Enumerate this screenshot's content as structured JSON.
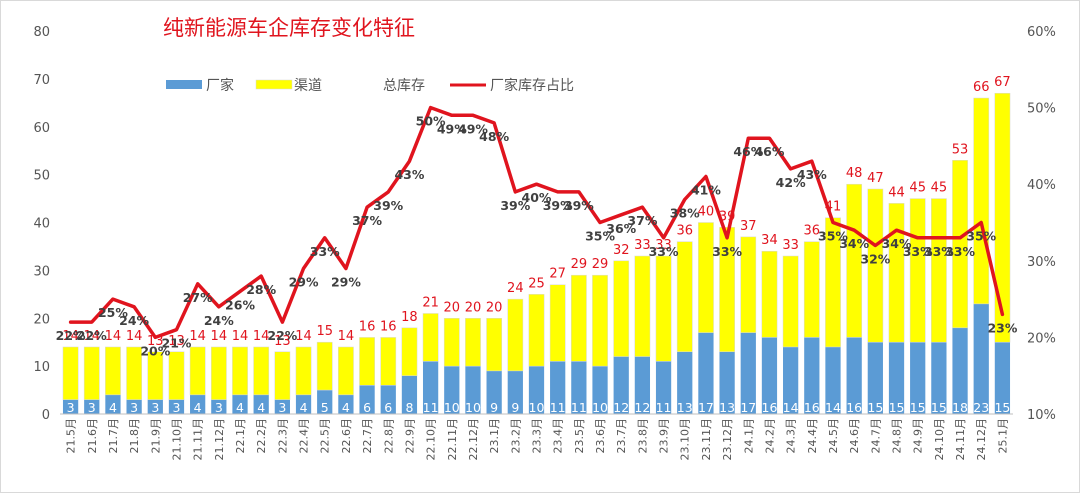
{
  "chart_data": {
    "type": "bar",
    "title": "纯新能源车企库存变化特征",
    "categories": [
      "21.5月",
      "21.6月",
      "21.7月",
      "21.8月",
      "21.9月",
      "21.10月",
      "21.11月",
      "21.12月",
      "22.1月",
      "22.2月",
      "22.3月",
      "22.4月",
      "22.5月",
      "22.6月",
      "22.7月",
      "22.8月",
      "22.9月",
      "22.10月",
      "22.11月",
      "22.12月",
      "23.1月",
      "23.2月",
      "23.3月",
      "23.4月",
      "23.5月",
      "23.6月",
      "23.7月",
      "23.8月",
      "23.9月",
      "23.10月",
      "23.11月",
      "23.12月",
      "24.1月",
      "24.2月",
      "24.3月",
      "24.4月",
      "24.5月",
      "24.6月",
      "24.7月",
      "24.8月",
      "24.9月",
      "24.10月",
      "24.11月",
      "24.12月",
      "25.1月"
    ],
    "series": [
      {
        "name": "厂家",
        "type": "bar",
        "stack": "inventory",
        "color": "#5b9bd5",
        "axis": "left",
        "values": [
          3,
          3,
          4,
          3,
          3,
          3,
          4,
          3,
          4,
          4,
          3,
          4,
          5,
          4,
          6,
          6,
          8,
          11,
          10,
          10,
          9,
          9,
          10,
          11,
          11,
          10,
          12,
          12,
          11,
          13,
          17,
          13,
          17,
          16,
          14,
          16,
          14,
          16,
          15,
          15,
          15,
          15,
          18,
          23,
          15
        ]
      },
      {
        "name": "渠道",
        "type": "bar",
        "stack": "inventory",
        "color": "#ffff00",
        "axis": "left",
        "values": [
          11,
          11,
          10,
          11,
          10,
          10,
          10,
          11,
          10,
          10,
          10,
          10,
          10,
          10,
          10,
          10,
          10,
          10,
          10,
          10,
          11,
          15,
          15,
          16,
          18,
          19,
          20,
          21,
          22,
          23,
          23,
          26,
          20,
          18,
          19,
          20,
          27,
          32,
          32,
          29,
          30,
          30,
          35,
          43,
          52
        ]
      },
      {
        "name": "总库存",
        "type": "label",
        "axis": "left",
        "values": [
          14,
          14,
          14,
          14,
          13,
          13,
          14,
          14,
          14,
          14,
          13,
          14,
          15,
          14,
          16,
          16,
          18,
          21,
          20,
          20,
          20,
          24,
          25,
          27,
          29,
          29,
          32,
          33,
          33,
          36,
          40,
          39,
          37,
          34,
          33,
          36,
          41,
          48,
          47,
          44,
          45,
          45,
          53,
          66,
          67
        ]
      },
      {
        "name": "厂家库存占比",
        "type": "line",
        "color": "#e0141e",
        "axis": "right",
        "unit": "%",
        "values": [
          22,
          22,
          25,
          24,
          20,
          21,
          27,
          24,
          26,
          28,
          22,
          29,
          33,
          29,
          37,
          39,
          43,
          50,
          49,
          49,
          48,
          39,
          40,
          39,
          39,
          35,
          36,
          37,
          33,
          38,
          41,
          33,
          46,
          46,
          42,
          43,
          35,
          34,
          32,
          34,
          33,
          33,
          33,
          35,
          23
        ]
      }
    ],
    "y_left": {
      "min": 0,
      "max": 80,
      "ticks": [
        "0",
        "10",
        "20",
        "30",
        "40",
        "50",
        "60",
        "70",
        "80"
      ]
    },
    "y_right": {
      "min": 10,
      "max": 60,
      "ticks": [
        "10%",
        "20%",
        "30%",
        "40%",
        "50%",
        "60%"
      ]
    },
    "grid": false,
    "legend_position": "top-left"
  }
}
